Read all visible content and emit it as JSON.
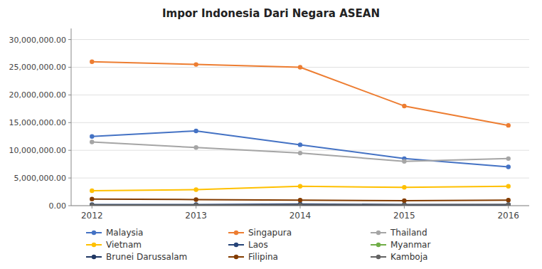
{
  "chart_data": {
    "type": "line",
    "title": "Impor Indonesia Dari Negara ASEAN",
    "x": [
      2012,
      2013,
      2014,
      2015,
      2016
    ],
    "xlim": [
      2011.8,
      2016.2
    ],
    "xticks": [
      2012,
      2013,
      2014,
      2015,
      2016
    ],
    "ylim": [
      0,
      32000000
    ],
    "yticks": [
      {
        "value": 0,
        "label": "0.00"
      },
      {
        "value": 5000000,
        "label": "5,000,000.00"
      },
      {
        "value": 10000000,
        "label": "10,000,000.00"
      },
      {
        "value": 15000000,
        "label": "15,000,000.00"
      },
      {
        "value": 20000000,
        "label": "20,000,000.00"
      },
      {
        "value": 25000000,
        "label": "25,000,000.00"
      },
      {
        "value": 30000000,
        "label": "30,000,000.00"
      }
    ],
    "grid": true,
    "legend": "bottom",
    "marker": "circle",
    "line_style": "solid",
    "series": [
      {
        "name": "Malaysia",
        "color": "#4472C4",
        "values": [
          12500000,
          13500000,
          11000000,
          8500000,
          7000000
        ]
      },
      {
        "name": "Singapura",
        "color": "#ED7D31",
        "values": [
          26000000,
          25500000,
          25000000,
          18000000,
          14500000
        ]
      },
      {
        "name": "Thailand",
        "color": "#A5A5A5",
        "values": [
          11500000,
          10500000,
          9500000,
          8000000,
          8500000
        ]
      },
      {
        "name": "Vietnam",
        "color": "#FFC000",
        "values": [
          2700000,
          2900000,
          3500000,
          3300000,
          3500000
        ]
      },
      {
        "name": "Laos",
        "color": "#264478",
        "values": [
          200000,
          200000,
          300000,
          200000,
          200000
        ]
      },
      {
        "name": "Myanmar",
        "color": "#70AD47",
        "values": [
          50000,
          50000,
          50000,
          50000,
          50000
        ]
      },
      {
        "name": "Brunei Darussalam",
        "color": "#203864",
        "values": [
          100000,
          100000,
          100000,
          100000,
          100000
        ]
      },
      {
        "name": "Filipina",
        "color": "#833C00",
        "values": [
          1200000,
          1100000,
          1000000,
          900000,
          1000000
        ]
      },
      {
        "name": "Kamboja",
        "color": "#636363",
        "values": [
          100000,
          100000,
          150000,
          150000,
          200000
        ]
      }
    ]
  }
}
